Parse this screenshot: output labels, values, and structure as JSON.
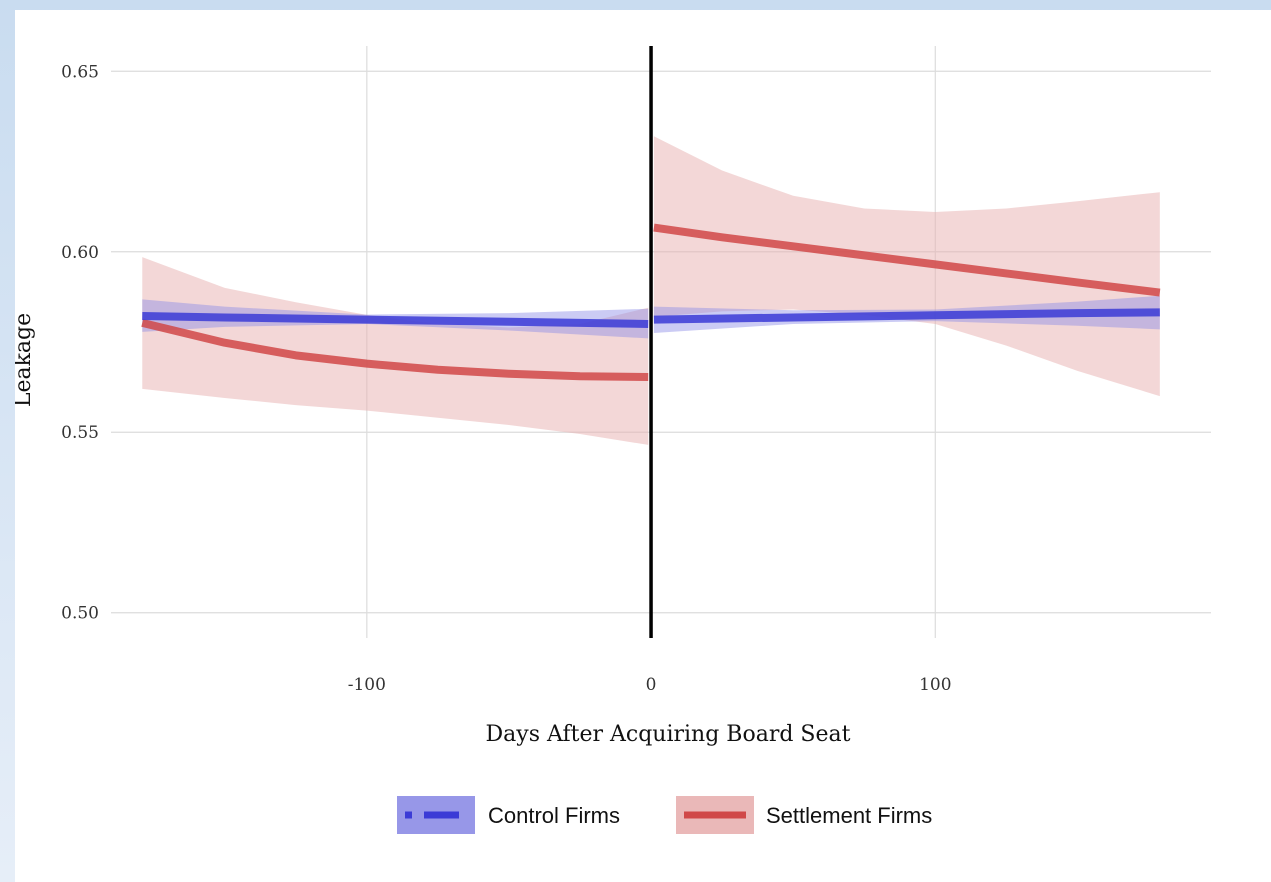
{
  "chart_data": {
    "type": "line",
    "title": "",
    "xlabel": "Days After Acquiring Board Seat",
    "ylabel": "Leakage",
    "xlim": [
      -190,
      197
    ],
    "ylim": [
      0.493,
      0.657
    ],
    "x_ticks": [
      -100,
      0,
      100
    ],
    "x_tick_labels": [
      "-100",
      "0",
      "100"
    ],
    "y_ticks": [
      0.5,
      0.55,
      0.6,
      0.65
    ],
    "y_tick_labels": [
      "0.50",
      "0.55",
      "0.60",
      "0.65"
    ],
    "grid": true,
    "legend_position": "bottom",
    "vertical_line_x": 0,
    "series": [
      {
        "name": "Control Firms",
        "color": "#3b3bd6",
        "band_color": "#8c8ce6",
        "style": "dashed",
        "segments": [
          {
            "x": [
              -179,
              -150,
              -100,
              -50,
              -1
            ],
            "y": [
              0.5822,
              0.5818,
              0.5812,
              0.5806,
              0.58
            ],
            "lower": [
              0.5778,
              0.5792,
              0.58,
              0.5782,
              0.576
            ],
            "upper": [
              0.5868,
              0.5848,
              0.5826,
              0.583,
              0.5842
            ]
          },
          {
            "x": [
              1,
              50,
              100,
              150,
              179
            ],
            "y": [
              0.5812,
              0.5818,
              0.5824,
              0.583,
              0.5832
            ],
            "lower": [
              0.5775,
              0.58,
              0.5808,
              0.5795,
              0.5785
            ],
            "upper": [
              0.5848,
              0.5838,
              0.584,
              0.5862,
              0.5878
            ]
          }
        ]
      },
      {
        "name": "Settlement Firms",
        "color": "#d04848",
        "band_color": "#e8b0b0",
        "style": "solid",
        "segments": [
          {
            "x": [
              -179,
              -150,
              -125,
              -100,
              -75,
              -50,
              -25,
              -1
            ],
            "y": [
              0.5803,
              0.5748,
              0.5713,
              0.569,
              0.5673,
              0.5662,
              0.5655,
              0.5653
            ],
            "lower": [
              0.562,
              0.5595,
              0.5575,
              0.556,
              0.554,
              0.552,
              0.5495,
              0.5465
            ],
            "upper": [
              0.5985,
              0.59,
              0.586,
              0.5825,
              0.58,
              0.579,
              0.58,
              0.5845
            ]
          },
          {
            "x": [
              1,
              25,
              50,
              75,
              100,
              125,
              150,
              179
            ],
            "y": [
              0.6067,
              0.604,
              0.6015,
              0.599,
              0.5965,
              0.594,
              0.5915,
              0.5887
            ],
            "lower": [
              0.582,
              0.5835,
              0.584,
              0.5825,
              0.58,
              0.574,
              0.567,
              0.56
            ],
            "upper": [
              0.632,
              0.6225,
              0.6155,
              0.612,
              0.611,
              0.612,
              0.614,
              0.6165
            ]
          }
        ]
      }
    ]
  }
}
